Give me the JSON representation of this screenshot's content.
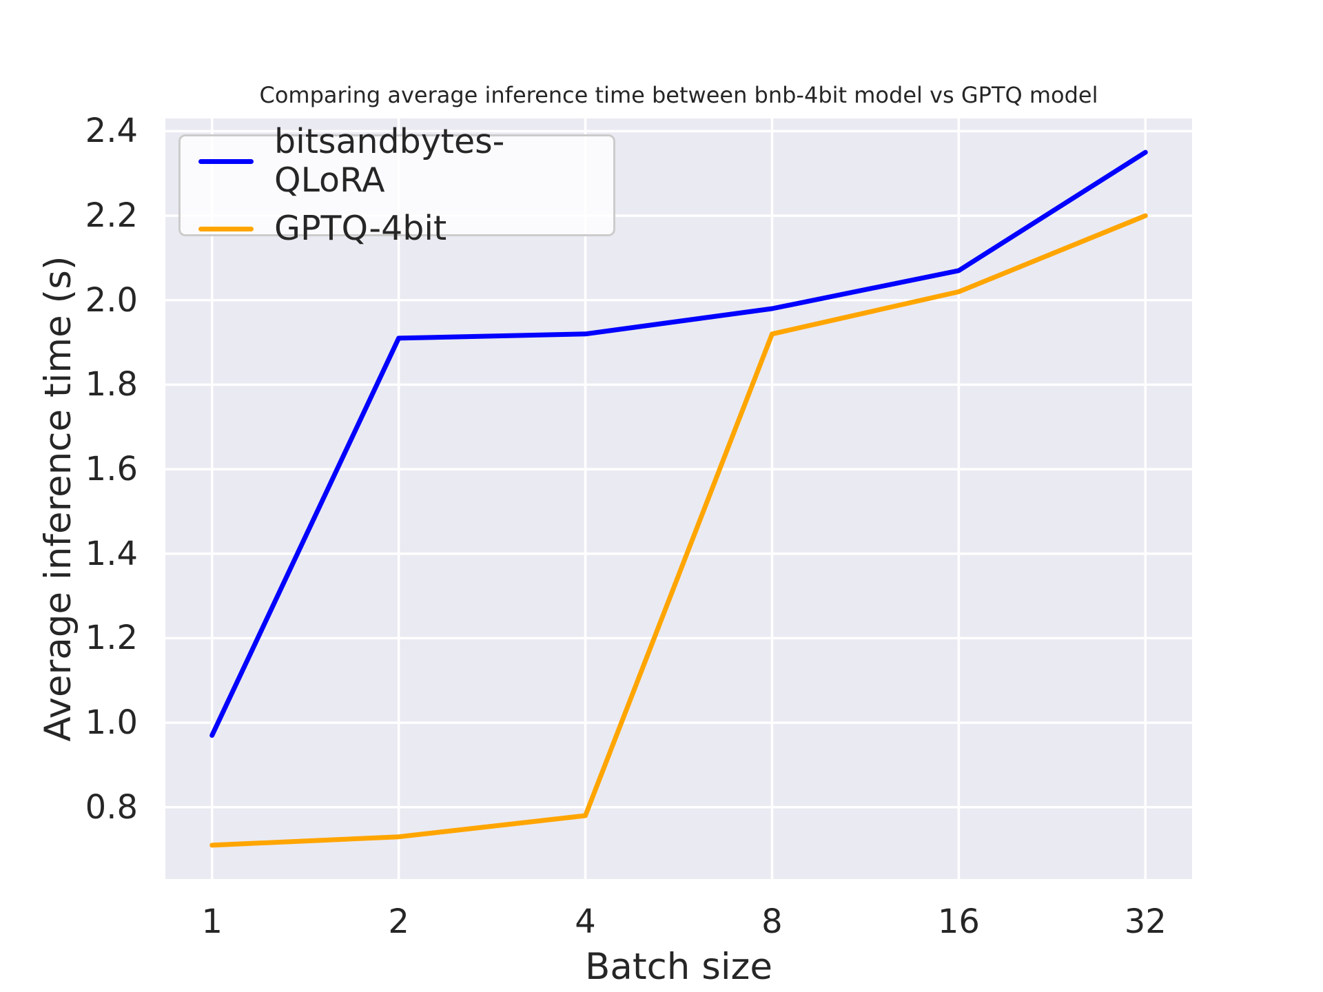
{
  "chart_data": {
    "type": "line",
    "title": "Comparing average inference time between bnb-4bit model vs GPTQ model",
    "xlabel": "Batch size",
    "ylabel": "Average inference time (s)",
    "x": [
      1,
      2,
      4,
      8,
      16,
      32
    ],
    "x_scale": "log2",
    "xtick_labels": [
      "1",
      "2",
      "4",
      "8",
      "16",
      "32"
    ],
    "yticks": [
      0.8,
      1.0,
      1.2,
      1.4,
      1.6,
      1.8,
      2.0,
      2.2,
      2.4
    ],
    "ytick_labels": [
      "0.8",
      "1.0",
      "1.2",
      "1.4",
      "1.6",
      "1.8",
      "2.0",
      "2.2",
      "2.4"
    ],
    "ylim": [
      0.63,
      2.43
    ],
    "xlim_log2": [
      -0.25,
      5.25
    ],
    "grid": true,
    "legend_position": "upper left",
    "series": [
      {
        "name": "bitsandbytes-QLoRA",
        "color": "#0000ff",
        "values": [
          0.97,
          1.91,
          1.92,
          1.98,
          2.07,
          2.35
        ]
      },
      {
        "name": "GPTQ-4bit",
        "color": "#ffa500",
        "values": [
          0.71,
          0.73,
          0.78,
          1.92,
          2.02,
          2.2
        ]
      }
    ],
    "plot_bg": "#eaeaf2",
    "grid_color": "#ffffff",
    "text_color": "#262626"
  },
  "legend": {
    "items": [
      {
        "label": "bitsandbytes-QLoRA",
        "color": "#0000ff"
      },
      {
        "label": "GPTQ-4bit",
        "color": "#ffa500"
      }
    ]
  }
}
